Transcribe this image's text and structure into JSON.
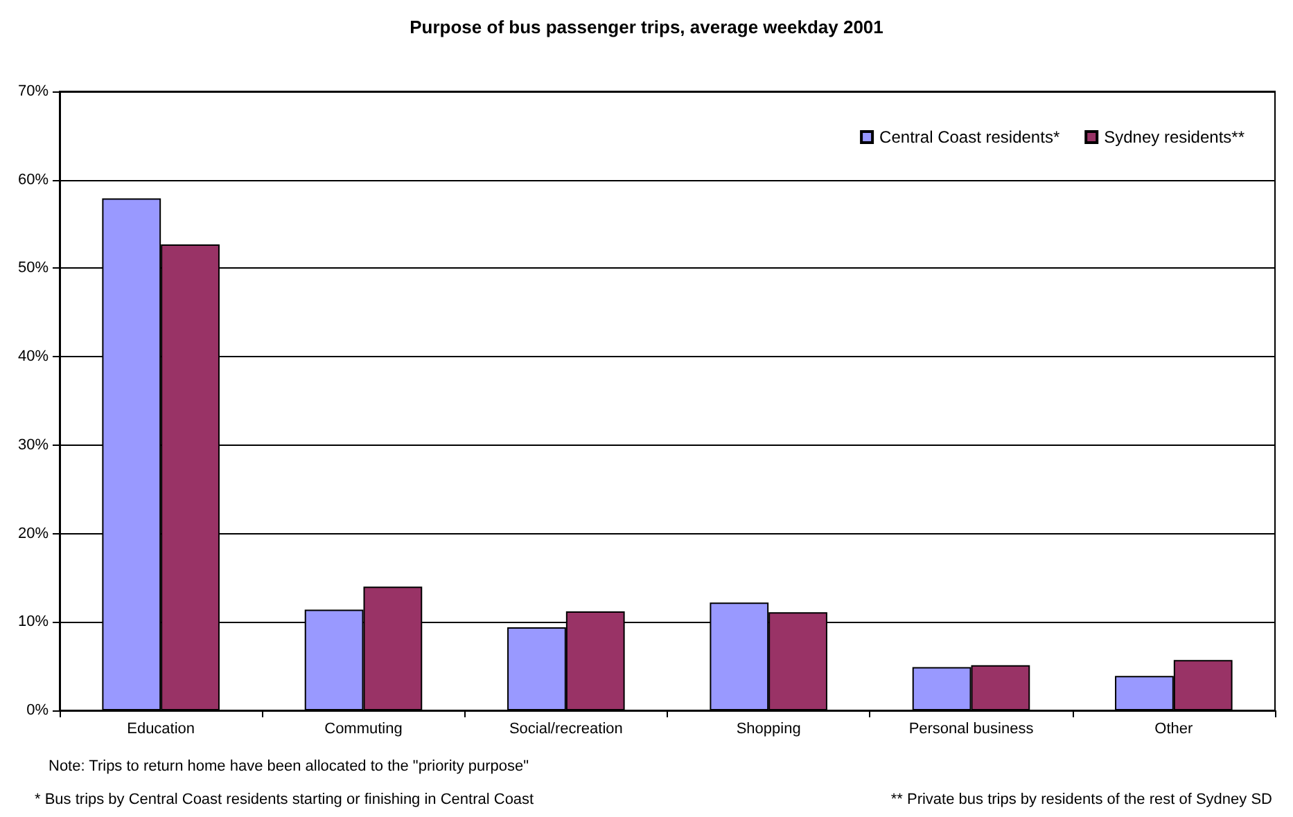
{
  "chart_data": {
    "type": "bar",
    "title": "Purpose of bus passenger trips, average weekday 2001",
    "categories": [
      "Education",
      "Commuting",
      "Social/recreation",
      "Shopping",
      "Personal business",
      "Other"
    ],
    "series": [
      {
        "name": "Central Coast residents*",
        "color": "#9999ff",
        "values": [
          57.9,
          11.4,
          9.4,
          12.2,
          4.9,
          3.9
        ]
      },
      {
        "name": "Sydney residents**",
        "color": "#993366",
        "values": [
          52.7,
          14.0,
          11.2,
          11.1,
          5.1,
          5.7
        ]
      }
    ],
    "ylim": [
      0,
      70
    ],
    "yticks": [
      {
        "value": 0,
        "label": "0%"
      },
      {
        "value": 10,
        "label": "10%"
      },
      {
        "value": 20,
        "label": "20%"
      },
      {
        "value": 30,
        "label": "30%"
      },
      {
        "value": 40,
        "label": "40%"
      },
      {
        "value": 50,
        "label": "50%"
      },
      {
        "value": 60,
        "label": "60%"
      },
      {
        "value": 70,
        "label": "70%"
      }
    ],
    "grid": "y",
    "legend": "top right",
    "annotations": [
      "Note: Trips to return home have been allocated to the \"priority purpose\"",
      "* Bus trips by Central Coast residents starting or finishing in Central Coast",
      "** Private bus trips by residents of the rest of Sydney SD"
    ]
  }
}
